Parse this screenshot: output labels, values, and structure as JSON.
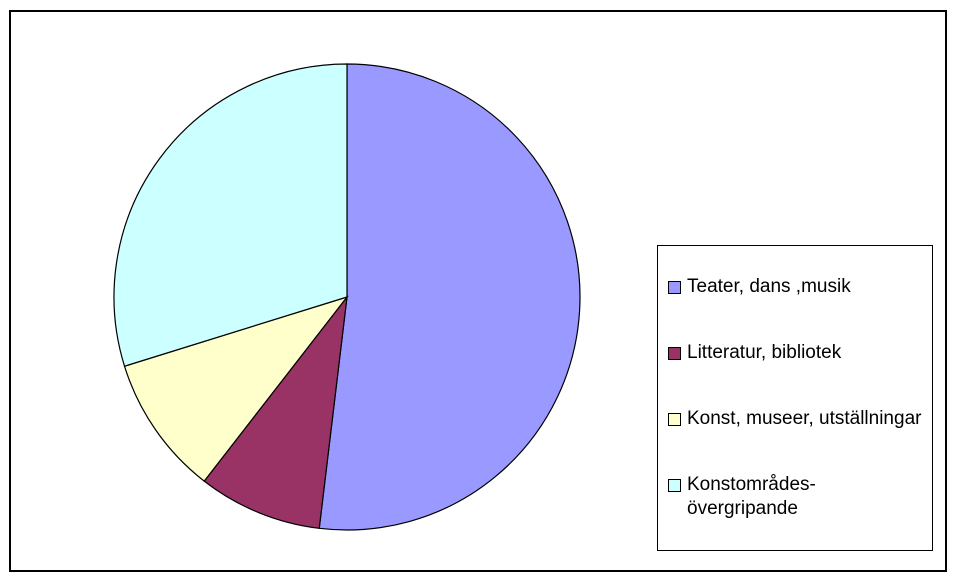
{
  "chart_data": {
    "type": "pie",
    "categories": [
      "Teater, dans ,musik",
      "Litteratur, bibliotek",
      "Konst, museer, utställningar",
      "Konstområdes-övergripande"
    ],
    "values": [
      51.9,
      8.6,
      9.7,
      29.8
    ],
    "colors": [
      "#9999ff",
      "#993366",
      "#ffffcc",
      "#ccffff"
    ],
    "legend": "right"
  }
}
